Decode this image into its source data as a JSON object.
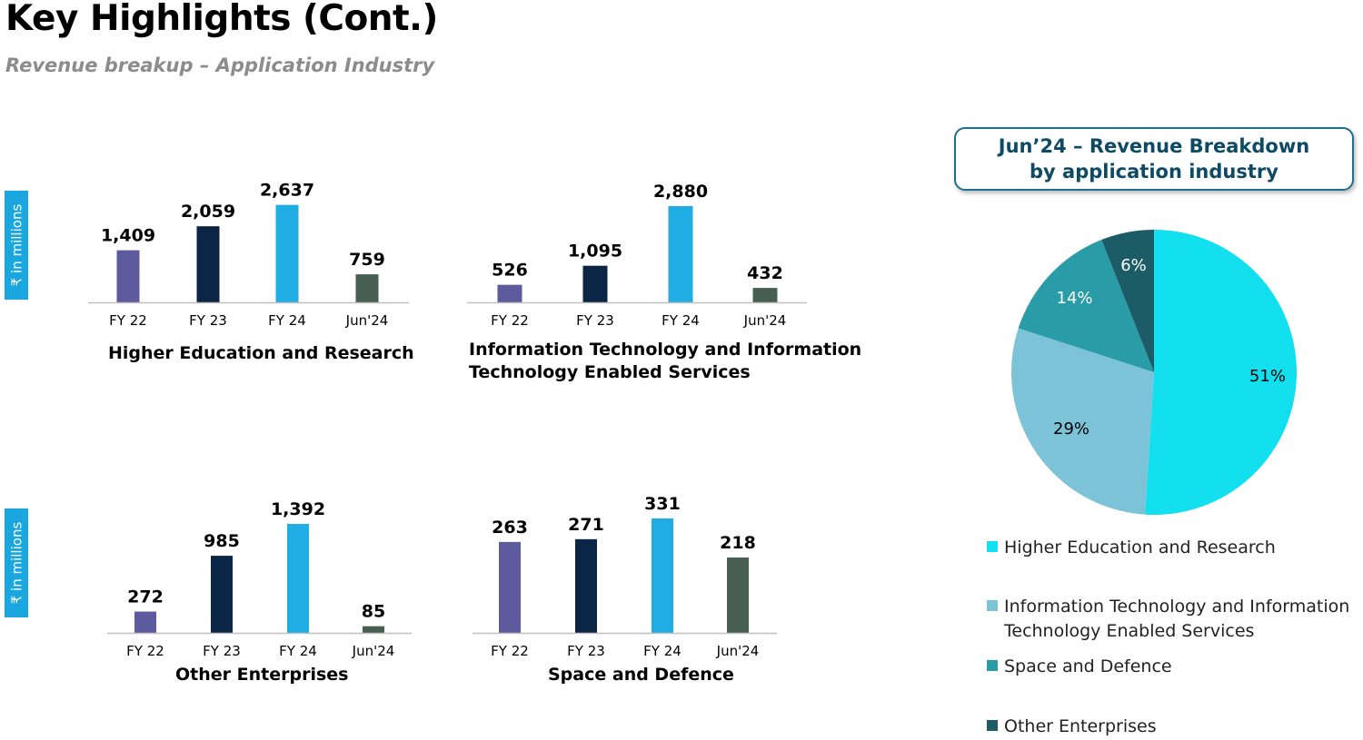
{
  "title": "Key Highlights (Cont.)",
  "subtitle": "Revenue breakup – Application Industry",
  "unit_label": "₹ in millions",
  "colors": {
    "fy22": "#5e5a9e",
    "fy23": "#0b2546",
    "fy24": "#1fade3",
    "jun24": "#475e53",
    "axis": "#bfbfbf",
    "pie_higher_ed": "#12e0ee",
    "pie_it": "#7cc3d8",
    "pie_space": "#2a9ca7",
    "pie_other": "#1b5c67"
  },
  "chart_data": [
    {
      "type": "bar",
      "title": "Higher Education and Research",
      "categories": [
        "FY 22",
        "FY 23",
        "FY 24",
        "Jun'24"
      ],
      "values": [
        1409,
        2059,
        2637,
        759
      ],
      "labels": [
        "1,409",
        "2,059",
        "2,637",
        "759"
      ],
      "ylabel": "₹ in millions",
      "ylim": [
        0,
        2800
      ]
    },
    {
      "type": "bar",
      "title": "Information Technology and Information Technology Enabled Services",
      "title_lines": [
        "Information Technology and Information",
        "Technology Enabled Services"
      ],
      "categories": [
        "FY 22",
        "FY 23",
        "FY 24",
        "Jun'24"
      ],
      "values": [
        526,
        1095,
        2880,
        432
      ],
      "labels": [
        "526",
        "1,095",
        "2,880",
        "432"
      ],
      "ylim": [
        0,
        2880
      ]
    },
    {
      "type": "bar",
      "title": "Other Enterprises",
      "categories": [
        "FY 22",
        "FY 23",
        "FY 24",
        "Jun'24"
      ],
      "values": [
        272,
        985,
        1392,
        85
      ],
      "labels": [
        "272",
        "985",
        "1,392",
        "85"
      ],
      "ylabel": "₹ in millions",
      "ylim": [
        0,
        1392
      ]
    },
    {
      "type": "bar",
      "title": "Space and Defence",
      "categories": [
        "FY 22",
        "FY 23",
        "FY 24",
        "Jun'24"
      ],
      "values": [
        263,
        271,
        331,
        218
      ],
      "labels": [
        "263",
        "271",
        "331",
        "218"
      ],
      "ylim": [
        0,
        331
      ]
    },
    {
      "type": "pie",
      "title": "Jun’24 – Revenue Breakdown by application industry",
      "title_lines": [
        "Jun’24 – Revenue Breakdown",
        "by application industry"
      ],
      "slices": [
        {
          "name": "Higher Education and Research",
          "value": 51,
          "label": "51%"
        },
        {
          "name": "Information Technology and Information Technology Enabled Services",
          "value": 29,
          "label": "29%"
        },
        {
          "name": "Space and Defence",
          "value": 14,
          "label": "14%"
        },
        {
          "name": "Other Enterprises",
          "value": 6,
          "label": "6%"
        }
      ],
      "legend": [
        [
          "Higher Education and Research"
        ],
        [
          "Information Technology and Information",
          "Technology Enabled Services"
        ],
        [
          "Space and Defence"
        ],
        [
          "Other Enterprises"
        ]
      ]
    }
  ]
}
